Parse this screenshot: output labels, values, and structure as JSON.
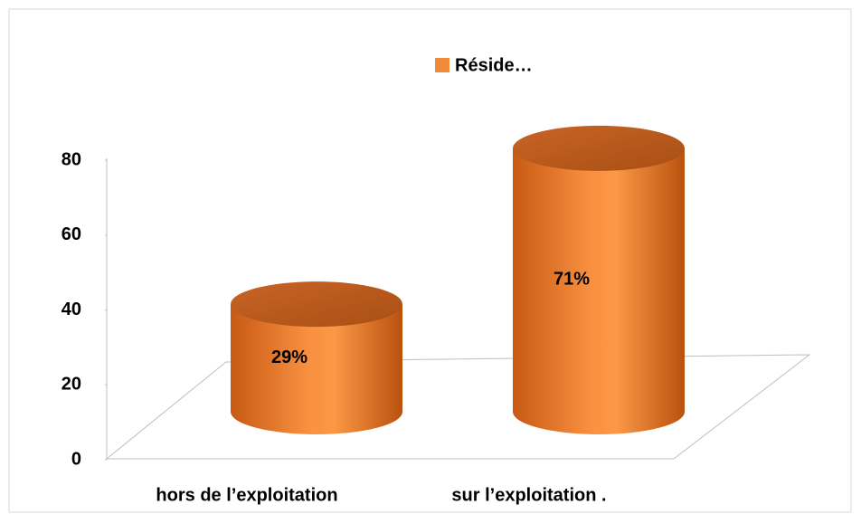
{
  "chart_data": {
    "type": "cylinder",
    "legend": "Réside…",
    "categories": [
      "hors de l’exploitation",
      "sur l’exploitation ."
    ],
    "values": [
      29,
      71
    ],
    "value_labels": [
      "29%",
      "71%"
    ],
    "color": "#f08a3a",
    "ylim": [
      0,
      80
    ],
    "yticks": [
      0,
      20,
      40,
      60,
      80
    ],
    "legend_position": "top"
  }
}
